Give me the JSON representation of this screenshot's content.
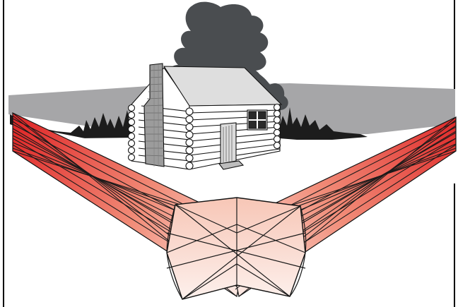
{
  "scene": {
    "colors": {
      "sky": "#a6a6a8",
      "ground": "#ffffff",
      "tree": "#4a4d50",
      "brush": "#1c1c1c",
      "cabin_wall": "#ffffff",
      "cabin_roof": "#dedede",
      "chimney": "#9c9c9c",
      "beam_far": "#e02a2a",
      "beam_near": "#fbe6e0",
      "outline": "#111111"
    },
    "elements": [
      "tree",
      "log-cabin",
      "stone-chimney",
      "window",
      "door",
      "brush",
      "left-light-beam",
      "right-light-beam",
      "beam-intersection"
    ]
  }
}
